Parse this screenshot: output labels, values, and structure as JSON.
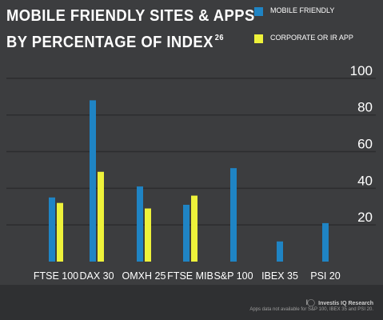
{
  "header": {
    "title_line1": "MOBILE FRIENDLY SITES & APPS",
    "title_line2": "BY PERCENTAGE OF INDEX",
    "title_sup": "26"
  },
  "colors": {
    "background": "#3c3d3f",
    "mobile_friendly": "#1f84c4",
    "corporate_app": "#eef23a",
    "gridline": "#2c2d2f",
    "text": "#ffffff"
  },
  "chart_data": {
    "type": "bar",
    "categories": [
      "FTSE 100",
      "DAX 30",
      "OMXH 25",
      "FTSE MIB",
      "S&P 100",
      "IBEX 35",
      "PSI 20"
    ],
    "series": [
      {
        "name": "MOBILE FRIENDLY",
        "values": [
          35,
          88,
          41,
          31,
          51,
          11,
          21
        ]
      },
      {
        "name": "CORPORATE OR IR APP",
        "values": [
          32,
          49,
          29,
          36,
          null,
          null,
          null
        ]
      }
    ],
    "yticks": [
      "20",
      "40",
      "60",
      "80",
      "100"
    ],
    "ylim": [
      0,
      110
    ],
    "grid": true,
    "legend_position": "top-right"
  },
  "footer": {
    "logo_mark": "I◯",
    "logo_text": "Investis IQ Research",
    "note": "Apps data not available for S&P 100, IBEX 35 and PSI 20."
  }
}
